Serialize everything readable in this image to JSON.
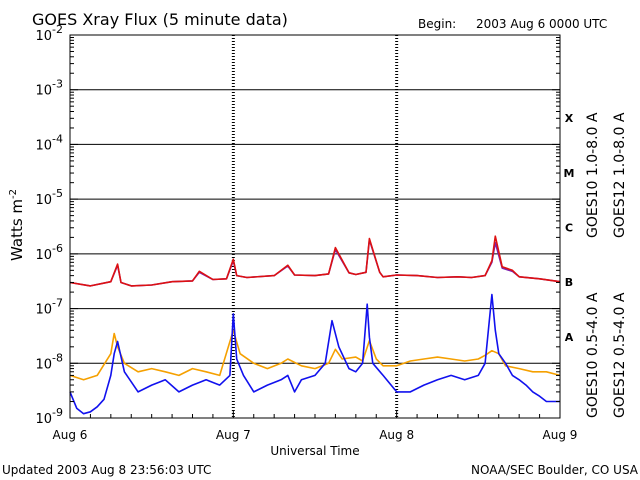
{
  "title": "GOES Xray Flux (5 minute data)",
  "begin_label": "Begin:",
  "begin_value": "2003 Aug 6 0000 UTC",
  "updated": "Updated 2003 Aug  8 23:56:03 UTC",
  "credit": "NOAA/SEC Boulder, CO USA",
  "colors": {
    "goes10_long": "#7a1fb0",
    "goes12_long": "#dd1111",
    "goes10_short": "#f5a000",
    "goes12_short": "#1111ee",
    "axis": "#000000"
  },
  "chart_data": {
    "type": "line",
    "title": "GOES Xray Flux (5 minute data)",
    "xlabel": "Universal Time",
    "ylabel_base": "Watts m",
    "ylabel_exp": "-2",
    "yscale": "log",
    "ylim": [
      1e-09,
      0.01
    ],
    "xlim": [
      "2003-08-06 00:00",
      "2003-08-09 00:00"
    ],
    "x_ticks": [
      "Aug 6",
      "Aug 7",
      "Aug 8",
      "Aug 9"
    ],
    "y_ticks": [
      {
        "base": "10",
        "exp": "-9",
        "value": 1e-09
      },
      {
        "base": "10",
        "exp": "-8",
        "value": 1e-08
      },
      {
        "base": "10",
        "exp": "-7",
        "value": 1e-07
      },
      {
        "base": "10",
        "exp": "-6",
        "value": 1e-06
      },
      {
        "base": "10",
        "exp": "-5",
        "value": 1e-05
      },
      {
        "base": "10",
        "exp": "-4",
        "value": 0.0001
      },
      {
        "base": "10",
        "exp": "-3",
        "value": 0.001
      },
      {
        "base": "10",
        "exp": "-2",
        "value": 0.01
      }
    ],
    "flare_classes": [
      {
        "label": "A",
        "value": 1e-08
      },
      {
        "label": "B",
        "value": 1e-07
      },
      {
        "label": "C",
        "value": 1e-06
      },
      {
        "label": "M",
        "value": 1e-05
      },
      {
        "label": "X",
        "value": 0.0001
      }
    ],
    "grid": "horizontal lines at each decade; dashed vertical lines at day boundaries",
    "legend": "right side, vertical text",
    "series": [
      {
        "name": "GOES10 1.0-8.0 A",
        "color": "#7a1fb0",
        "x": [
          "2003-08-06 00:00",
          "2003-08-06 03:00",
          "2003-08-06 06:00",
          "2003-08-06 07:00",
          "2003-08-06 07:30",
          "2003-08-06 09:00",
          "2003-08-06 12:00",
          "2003-08-06 15:00",
          "2003-08-06 18:00",
          "2003-08-06 19:00",
          "2003-08-06 21:00",
          "2003-08-06 23:00",
          "2003-08-07 00:00",
          "2003-08-07 00:30",
          "2003-08-07 02:00",
          "2003-08-07 06:00",
          "2003-08-07 08:00",
          "2003-08-07 09:00",
          "2003-08-07 12:00",
          "2003-08-07 14:00",
          "2003-08-07 15:00",
          "2003-08-07 17:00",
          "2003-08-07 18:00",
          "2003-08-07 19:30",
          "2003-08-07 20:00",
          "2003-08-07 21:30",
          "2003-08-07 22:00",
          "2003-08-08 00:00",
          "2003-08-08 03:00",
          "2003-08-08 06:00",
          "2003-08-08 09:00",
          "2003-08-08 11:00",
          "2003-08-08 13:00",
          "2003-08-08 14:00",
          "2003-08-08 14:30",
          "2003-08-08 15:30",
          "2003-08-08 17:00",
          "2003-08-08 18:00",
          "2003-08-08 21:00",
          "2003-08-09 00:00"
        ],
        "y": [
          3e-07,
          2.6e-07,
          3.1e-07,
          6.2e-07,
          3e-07,
          2.6e-07,
          2.7e-07,
          3.1e-07,
          3.2e-07,
          4.6e-07,
          3.4e-07,
          3.5e-07,
          7.5e-07,
          4e-07,
          3.7e-07,
          4e-07,
          6e-07,
          4.1e-07,
          4e-07,
          4.3e-07,
          1.2e-06,
          4.5e-07,
          4.2e-07,
          4.6e-07,
          1.8e-06,
          4.6e-07,
          3.8e-07,
          4.1e-07,
          4e-07,
          3.7e-07,
          3.8e-07,
          3.7e-07,
          4e-07,
          7e-07,
          1.6e-06,
          5.5e-07,
          4.8e-07,
          3.8e-07,
          3.5e-07,
          3.1e-07
        ]
      },
      {
        "name": "GOES12 1.0-8.0 A",
        "color": "#dd1111",
        "x": [
          "2003-08-06 00:00",
          "2003-08-06 03:00",
          "2003-08-06 06:00",
          "2003-08-06 07:00",
          "2003-08-06 07:30",
          "2003-08-06 09:00",
          "2003-08-06 12:00",
          "2003-08-06 15:00",
          "2003-08-06 18:00",
          "2003-08-06 19:00",
          "2003-08-06 21:00",
          "2003-08-06 23:00",
          "2003-08-07 00:00",
          "2003-08-07 00:30",
          "2003-08-07 02:00",
          "2003-08-07 06:00",
          "2003-08-07 08:00",
          "2003-08-07 09:00",
          "2003-08-07 12:00",
          "2003-08-07 14:00",
          "2003-08-07 15:00",
          "2003-08-07 17:00",
          "2003-08-07 18:00",
          "2003-08-07 19:30",
          "2003-08-07 20:00",
          "2003-08-07 21:30",
          "2003-08-07 22:00",
          "2003-08-08 00:00",
          "2003-08-08 03:00",
          "2003-08-08 06:00",
          "2003-08-08 09:00",
          "2003-08-08 11:00",
          "2003-08-08 13:00",
          "2003-08-08 14:00",
          "2003-08-08 14:30",
          "2003-08-08 15:30",
          "2003-08-08 17:00",
          "2003-08-08 18:00",
          "2003-08-08 21:00",
          "2003-08-09 00:00"
        ],
        "y": [
          3e-07,
          2.6e-07,
          3.1e-07,
          6.5e-07,
          3e-07,
          2.6e-07,
          2.7e-07,
          3.1e-07,
          3.2e-07,
          4.8e-07,
          3.4e-07,
          3.5e-07,
          8e-07,
          4e-07,
          3.7e-07,
          4e-07,
          6.2e-07,
          4.1e-07,
          4e-07,
          4.3e-07,
          1.3e-06,
          4.5e-07,
          4.2e-07,
          4.6e-07,
          1.9e-06,
          4.6e-07,
          3.8e-07,
          4.1e-07,
          4e-07,
          3.7e-07,
          3.8e-07,
          3.7e-07,
          4e-07,
          7.5e-07,
          2.1e-06,
          5.8e-07,
          5e-07,
          3.8e-07,
          3.5e-07,
          3.1e-07
        ]
      },
      {
        "name": "GOES10 0.5-4.0 A",
        "color": "#f5a000",
        "x": [
          "2003-08-06 00:00",
          "2003-08-06 02:00",
          "2003-08-06 04:00",
          "2003-08-06 06:00",
          "2003-08-06 06:30",
          "2003-08-06 07:00",
          "2003-08-06 08:00",
          "2003-08-06 10:00",
          "2003-08-06 12:00",
          "2003-08-06 14:00",
          "2003-08-06 16:00",
          "2003-08-06 18:00",
          "2003-08-06 20:00",
          "2003-08-06 22:00",
          "2003-08-07 00:00",
          "2003-08-07 01:00",
          "2003-08-07 03:00",
          "2003-08-07 05:00",
          "2003-08-07 07:00",
          "2003-08-07 08:00",
          "2003-08-07 10:00",
          "2003-08-07 12:00",
          "2003-08-07 14:00",
          "2003-08-07 15:00",
          "2003-08-07 16:00",
          "2003-08-07 18:00",
          "2003-08-07 19:00",
          "2003-08-07 20:00",
          "2003-08-07 21:00",
          "2003-08-07 22:00",
          "2003-08-08 00:00",
          "2003-08-08 02:00",
          "2003-08-08 04:00",
          "2003-08-08 06:00",
          "2003-08-08 08:00",
          "2003-08-08 10:00",
          "2003-08-08 12:00",
          "2003-08-08 13:00",
          "2003-08-08 14:00",
          "2003-08-08 15:00",
          "2003-08-08 16:00",
          "2003-08-08 18:00",
          "2003-08-08 20:00",
          "2003-08-08 22:00",
          "2003-08-09 00:00"
        ],
        "y": [
          6e-09,
          5e-09,
          6e-09,
          1.5e-08,
          3.5e-08,
          2e-08,
          1e-08,
          7e-09,
          8e-09,
          7e-09,
          6e-09,
          8e-09,
          7e-09,
          6e-09,
          4e-08,
          1.5e-08,
          1e-08,
          8e-09,
          1e-08,
          1.2e-08,
          9e-09,
          8e-09,
          1e-08,
          1.8e-08,
          1.2e-08,
          1.3e-08,
          1.1e-08,
          2.6e-08,
          1.2e-08,
          9e-09,
          9e-09,
          1.1e-08,
          1.2e-08,
          1.3e-08,
          1.2e-08,
          1.1e-08,
          1.2e-08,
          1.4e-08,
          1.7e-08,
          1.5e-08,
          9e-09,
          8e-09,
          7e-09,
          7e-09,
          6e-09
        ]
      },
      {
        "name": "GOES12 0.5-4.0 A",
        "color": "#1111ee",
        "x": [
          "2003-08-06 00:00",
          "2003-08-06 01:00",
          "2003-08-06 02:00",
          "2003-08-06 03:00",
          "2003-08-06 04:00",
          "2003-08-06 05:00",
          "2003-08-06 06:00",
          "2003-08-06 06:30",
          "2003-08-06 07:00",
          "2003-08-06 08:00",
          "2003-08-06 10:00",
          "2003-08-06 12:00",
          "2003-08-06 14:00",
          "2003-08-06 16:00",
          "2003-08-06 18:00",
          "2003-08-06 20:00",
          "2003-08-06 22:00",
          "2003-08-06 23:30",
          "2003-08-07 00:00",
          "2003-08-07 00:30",
          "2003-08-07 01:30",
          "2003-08-07 03:00",
          "2003-08-07 05:00",
          "2003-08-07 07:00",
          "2003-08-07 08:00",
          "2003-08-07 09:00",
          "2003-08-07 10:00",
          "2003-08-07 12:00",
          "2003-08-07 13:30",
          "2003-08-07 14:30",
          "2003-08-07 15:30",
          "2003-08-07 17:00",
          "2003-08-07 18:00",
          "2003-08-07 19:00",
          "2003-08-07 19:40",
          "2003-08-07 20:00",
          "2003-08-07 20:30",
          "2003-08-07 22:00",
          "2003-08-08 00:00",
          "2003-08-08 02:00",
          "2003-08-08 04:00",
          "2003-08-08 06:00",
          "2003-08-08 08:00",
          "2003-08-08 10:00",
          "2003-08-08 12:00",
          "2003-08-08 13:00",
          "2003-08-08 14:00",
          "2003-08-08 14:30",
          "2003-08-08 15:00",
          "2003-08-08 16:00",
          "2003-08-08 17:00",
          "2003-08-08 18:00",
          "2003-08-08 19:00",
          "2003-08-08 20:00",
          "2003-08-08 21:00",
          "2003-08-08 22:00",
          "2003-08-08 23:00",
          "2003-08-09 00:00"
        ],
        "y": [
          3e-09,
          1.5e-09,
          1.2e-09,
          1.3e-09,
          1.6e-09,
          2.2e-09,
          6e-09,
          1.5e-08,
          2.5e-08,
          7e-09,
          3e-09,
          4e-09,
          5e-09,
          3e-09,
          4e-09,
          5e-09,
          4e-09,
          6e-09,
          8e-08,
          1.2e-08,
          6e-09,
          3e-09,
          4e-09,
          5e-09,
          6e-09,
          3e-09,
          5e-09,
          6e-09,
          1e-08,
          6e-08,
          2e-08,
          8e-09,
          7e-09,
          1e-08,
          1.2e-07,
          3e-08,
          1e-08,
          6e-09,
          3e-09,
          3e-09,
          4e-09,
          5e-09,
          6e-09,
          5e-09,
          6e-09,
          1e-08,
          1.8e-07,
          4e-08,
          1.5e-08,
          1e-08,
          6e-09,
          5e-09,
          4e-09,
          3e-09,
          2.5e-09,
          2e-09,
          2e-09,
          2e-09
        ]
      }
    ]
  }
}
